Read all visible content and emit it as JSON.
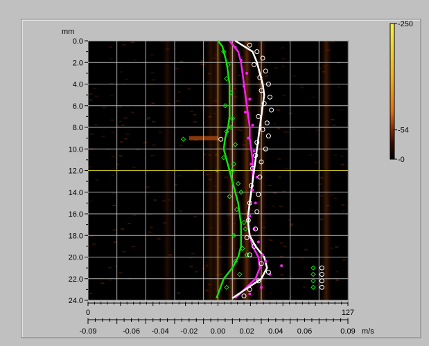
{
  "chart_data": {
    "type": "heatmap",
    "y_unit_label": "mm",
    "x_unit_label": "m/s",
    "y_ticks": [
      "0.0",
      "2.0",
      "4.0",
      "6.0",
      "8.0",
      "10.0",
      "12.0",
      "14.0",
      "16.0",
      "18.0",
      "20.0",
      "22.0",
      "24.0"
    ],
    "ylim": [
      0,
      24
    ],
    "x_ticks": [
      "-0.09",
      "-0.06",
      "-0.04",
      "-0.02",
      "0.00",
      "0.02",
      "0.04",
      "0.06",
      "0.09"
    ],
    "xlim": [
      -0.09,
      0.09
    ],
    "index_axis_labels": [
      "0",
      "127"
    ],
    "colorbar_labels": [
      "250",
      "54",
      "0"
    ],
    "colorbar_range": [
      0,
      250
    ],
    "colors": {
      "frame": "#c0c0c0",
      "plot_background": "#000000",
      "grid": "#d0d0d0",
      "cursor": "#c8c020",
      "series_green": "#10e010",
      "series_magenta": "#ff20ff",
      "series_white": "#ffffff"
    },
    "cursor": {
      "x": 0.0,
      "y": 12.0
    },
    "heat_bands": [
      {
        "x": 0.01,
        "intensity": 0.55
      },
      {
        "x": 0.02,
        "intensity": 0.45
      },
      {
        "x": 0.03,
        "intensity": 0.3
      },
      {
        "x": 0.0,
        "intensity": 0.35
      },
      {
        "x": -0.005,
        "intensity": 0.2
      },
      {
        "x": 0.075,
        "intensity": 0.3
      },
      {
        "x": -0.035,
        "intensity": 0.15
      }
    ],
    "series": [
      {
        "color": "#10e010",
        "x": [
          0.0,
          0.003,
          0.004,
          0.006,
          0.007,
          0.008,
          0.008,
          0.008,
          0.008,
          0.007,
          0.005,
          0.004,
          0.006,
          0.008,
          0.01,
          0.012,
          0.014,
          0.015,
          0.016,
          0.016,
          0.016,
          0.014,
          0.01,
          0.004,
          -0.001
        ],
        "y": [
          0.0,
          0.5,
          1.0,
          2.0,
          3.0,
          4.0,
          5.0,
          6.0,
          7.0,
          8.0,
          9.0,
          10.0,
          11.0,
          12.0,
          13.0,
          14.0,
          15.0,
          16.0,
          17.0,
          18.0,
          19.0,
          20.0,
          21.0,
          22.0,
          23.8
        ]
      },
      {
        "color": "#ff20ff",
        "x": [
          0.008,
          0.011,
          0.014,
          0.016,
          0.017,
          0.018,
          0.019,
          0.02,
          0.021,
          0.022,
          0.022,
          0.023,
          0.024,
          0.024,
          0.024,
          0.023,
          0.022,
          0.021,
          0.021,
          0.022,
          0.024,
          0.028,
          0.029,
          0.026,
          0.012
        ],
        "y": [
          0.0,
          0.5,
          1.0,
          2.0,
          3.0,
          4.0,
          5.0,
          6.0,
          7.0,
          8.0,
          9.0,
          10.0,
          11.0,
          12.0,
          13.0,
          14.0,
          15.0,
          16.0,
          17.0,
          18.0,
          19.0,
          20.0,
          21.0,
          22.0,
          23.8
        ]
      },
      {
        "color": "#ffffff",
        "x": [
          0.012,
          0.018,
          0.024,
          0.027,
          0.029,
          0.031,
          0.032,
          0.031,
          0.03,
          0.029,
          0.028,
          0.027,
          0.026,
          0.025,
          0.024,
          0.023,
          0.022,
          0.021,
          0.021,
          0.022,
          0.026,
          0.032,
          0.034,
          0.03,
          0.01
        ],
        "y": [
          0.0,
          0.5,
          1.0,
          2.0,
          3.0,
          4.0,
          5.0,
          6.0,
          7.0,
          8.0,
          9.0,
          10.0,
          11.0,
          12.0,
          13.0,
          14.0,
          15.0,
          16.0,
          17.0,
          18.0,
          19.0,
          20.0,
          21.0,
          22.0,
          23.8
        ]
      }
    ],
    "scatter_series": [
      {
        "color": "#10e010",
        "marker": "diamond",
        "points": [
          [
            0.004,
            1.0
          ],
          [
            0.007,
            2.2
          ],
          [
            0.006,
            3.5
          ],
          [
            0.009,
            4.8
          ],
          [
            0.005,
            6.0
          ],
          [
            0.01,
            7.2
          ],
          [
            0.006,
            8.4
          ],
          [
            0.012,
            9.6
          ],
          [
            0.004,
            10.8
          ],
          [
            0.01,
            12.0
          ],
          [
            0.014,
            13.2
          ],
          [
            0.008,
            14.4
          ],
          [
            0.013,
            15.6
          ],
          [
            0.018,
            16.8
          ],
          [
            0.011,
            18.0
          ],
          [
            0.017,
            19.2
          ],
          [
            0.012,
            20.4
          ],
          [
            0.015,
            21.6
          ],
          [
            0.006,
            22.8
          ],
          [
            0.009,
            8.0
          ],
          [
            0.011,
            11.4
          ],
          [
            0.016,
            14.0
          ],
          [
            0.019,
            17.4
          ],
          [
            0.02,
            19.8
          ],
          [
            -0.024,
            9.1
          ],
          [
            0.066,
            21.0
          ],
          [
            0.066,
            21.6
          ],
          [
            0.066,
            22.2
          ],
          [
            0.066,
            22.8
          ]
        ]
      },
      {
        "color": "#ff20ff",
        "marker": "dot",
        "points": [
          [
            0.012,
            0.6
          ],
          [
            0.016,
            1.8
          ],
          [
            0.02,
            3.0
          ],
          [
            0.018,
            4.2
          ],
          [
            0.022,
            5.4
          ],
          [
            0.019,
            6.6
          ],
          [
            0.024,
            7.8
          ],
          [
            0.021,
            9.0
          ],
          [
            0.025,
            10.2
          ],
          [
            0.023,
            11.4
          ],
          [
            0.027,
            12.6
          ],
          [
            0.024,
            13.8
          ],
          [
            0.026,
            15.0
          ],
          [
            0.022,
            16.2
          ],
          [
            0.025,
            17.4
          ],
          [
            0.028,
            18.6
          ],
          [
            0.031,
            19.8
          ],
          [
            0.033,
            20.4
          ],
          [
            0.044,
            20.8
          ],
          [
            0.036,
            21.6
          ],
          [
            0.03,
            22.8
          ],
          [
            0.022,
            23.4
          ]
        ]
      },
      {
        "color": "#ffffff",
        "marker": "circle",
        "points": [
          [
            0.022,
            0.4
          ],
          [
            0.027,
            1.0
          ],
          [
            0.031,
            1.6
          ],
          [
            0.025,
            2.2
          ],
          [
            0.033,
            2.8
          ],
          [
            0.029,
            3.4
          ],
          [
            0.035,
            4.0
          ],
          [
            0.03,
            4.6
          ],
          [
            0.036,
            5.2
          ],
          [
            0.032,
            5.8
          ],
          [
            0.037,
            6.4
          ],
          [
            0.028,
            7.0
          ],
          [
            0.034,
            7.6
          ],
          [
            0.031,
            8.2
          ],
          [
            0.035,
            8.8
          ],
          [
            0.027,
            9.4
          ],
          [
            0.033,
            10.0
          ],
          [
            0.026,
            10.6
          ],
          [
            0.03,
            11.2
          ],
          [
            0.024,
            11.8
          ],
          [
            0.029,
            12.6
          ],
          [
            0.023,
            13.4
          ],
          [
            0.028,
            14.2
          ],
          [
            0.022,
            15.0
          ],
          [
            0.027,
            15.8
          ],
          [
            0.021,
            16.6
          ],
          [
            0.026,
            17.4
          ],
          [
            0.02,
            18.2
          ],
          [
            0.025,
            19.0
          ],
          [
            0.022,
            19.8
          ],
          [
            0.03,
            20.6
          ],
          [
            0.035,
            21.4
          ],
          [
            0.028,
            22.2
          ],
          [
            0.022,
            23.0
          ],
          [
            0.018,
            23.6
          ],
          [
            0.002,
            9.1
          ],
          [
            0.072,
            21.0
          ],
          [
            0.072,
            21.6
          ],
          [
            0.072,
            22.2
          ],
          [
            0.072,
            22.8
          ]
        ]
      }
    ]
  }
}
